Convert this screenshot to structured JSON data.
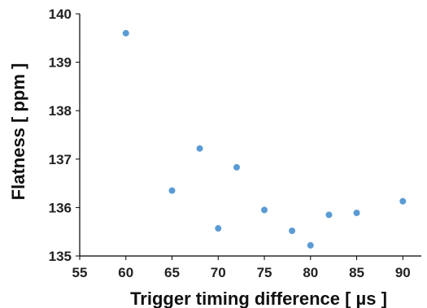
{
  "chart_data": {
    "type": "scatter",
    "title": "",
    "xlabel": "Trigger timing difference  [ µs ]",
    "ylabel": "Flatness [ ppm ]",
    "xlim": [
      55,
      92
    ],
    "ylim": [
      135,
      140
    ],
    "x_ticks": [
      55,
      60,
      65,
      70,
      75,
      80,
      85,
      90
    ],
    "y_ticks": [
      135,
      136,
      137,
      138,
      139,
      140
    ],
    "grid": false,
    "legend": "none",
    "point_color": "#5b9bd5",
    "points": [
      {
        "x": 60,
        "y": 139.6
      },
      {
        "x": 65,
        "y": 136.35
      },
      {
        "x": 68,
        "y": 137.22
      },
      {
        "x": 70,
        "y": 135.57
      },
      {
        "x": 72,
        "y": 136.83
      },
      {
        "x": 75,
        "y": 135.95
      },
      {
        "x": 78,
        "y": 135.52
      },
      {
        "x": 80,
        "y": 135.22
      },
      {
        "x": 82,
        "y": 135.85
      },
      {
        "x": 85,
        "y": 135.89
      },
      {
        "x": 90,
        "y": 136.13
      }
    ]
  }
}
